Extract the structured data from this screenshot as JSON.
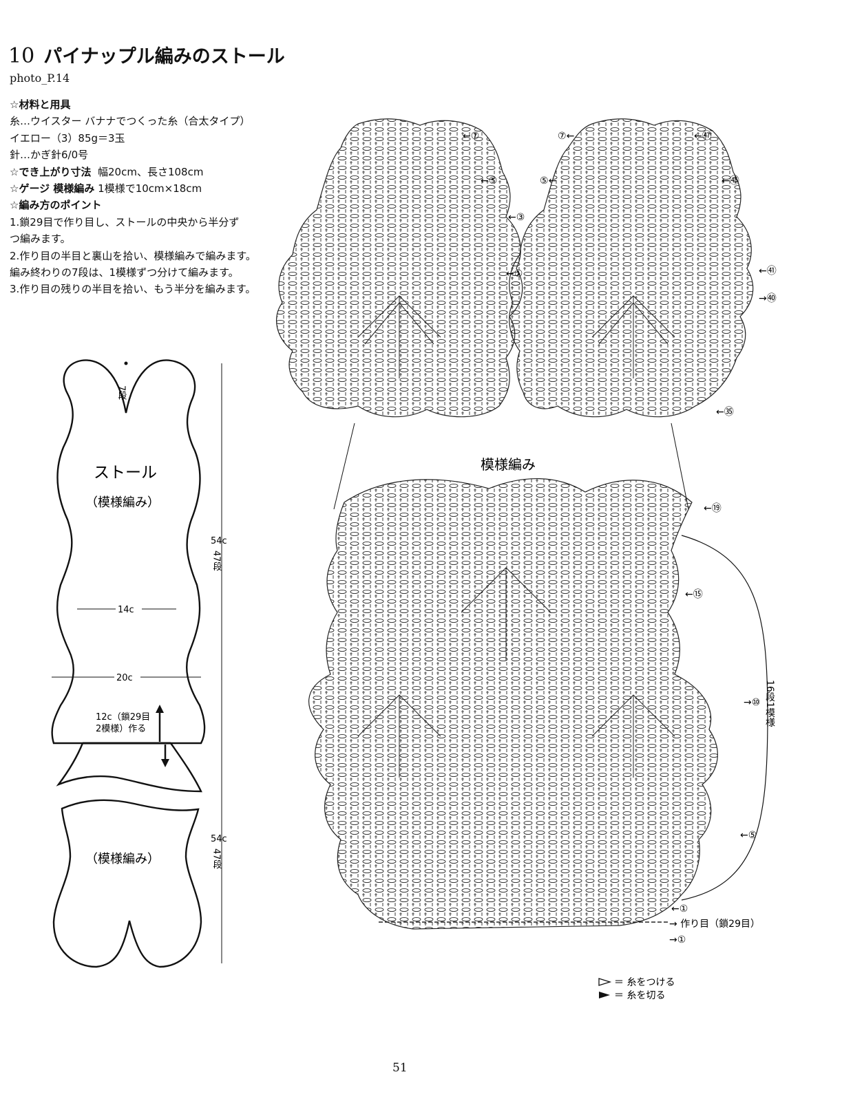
{
  "header": {
    "number": "10",
    "title": "パイナップル編みのストール",
    "photo_ref": "photo_P.14"
  },
  "materials": {
    "heading": "☆材料と用具",
    "yarn": "糸…ウイスター バナナでつくった糸（合太タイプ）",
    "color": "イエロー（3）85g＝3玉",
    "hook": "針…かぎ針6/0号",
    "size_label": "☆でき上がり寸法",
    "size_value": "幅20cm、長さ108cm",
    "gauge_label": "☆ゲージ 模様編み",
    "gauge_value": "1模様で10cm×18cm",
    "points_heading": "☆編み方のポイント",
    "steps": [
      "1.鎖29目で作り目し、ストールの中央から半分ず",
      "つ編みます。",
      "2.作り目の半目と裏山を拾い、模様編みで編みます。",
      "編み終わりの7段は、1模様ずつ分けて編みます。",
      "3.作り目の残りの半目を拾い、もう半分を編みます。"
    ]
  },
  "schematic": {
    "name": "ストール",
    "pattern": "（模様編み）",
    "top_rows": "7段",
    "length": "54c",
    "length_rows": "47段",
    "width_narrow": "14c",
    "width_wide": "20c",
    "cast_on_line1": "12c（鎖29目",
    "cast_on_line2": "2模様）作る"
  },
  "chart": {
    "pattern_label": "模様編み",
    "top_left_rows": [
      "⑦",
      "⑤",
      "③",
      "①"
    ],
    "top_right_rows": [
      "⑦",
      "⑤",
      "㊼",
      "㊺",
      "㊶",
      "㊵",
      "㉟"
    ],
    "bottom_rows": [
      "⑲",
      "⑮",
      "⑩",
      "⑤",
      "①",
      "①"
    ],
    "repeat_label": "16段1模様",
    "cast_on": "作り目（鎖29目）"
  },
  "legend": {
    "join": "＝ 糸をつける",
    "cut": "＝ 糸を切る"
  },
  "page_number": "51"
}
